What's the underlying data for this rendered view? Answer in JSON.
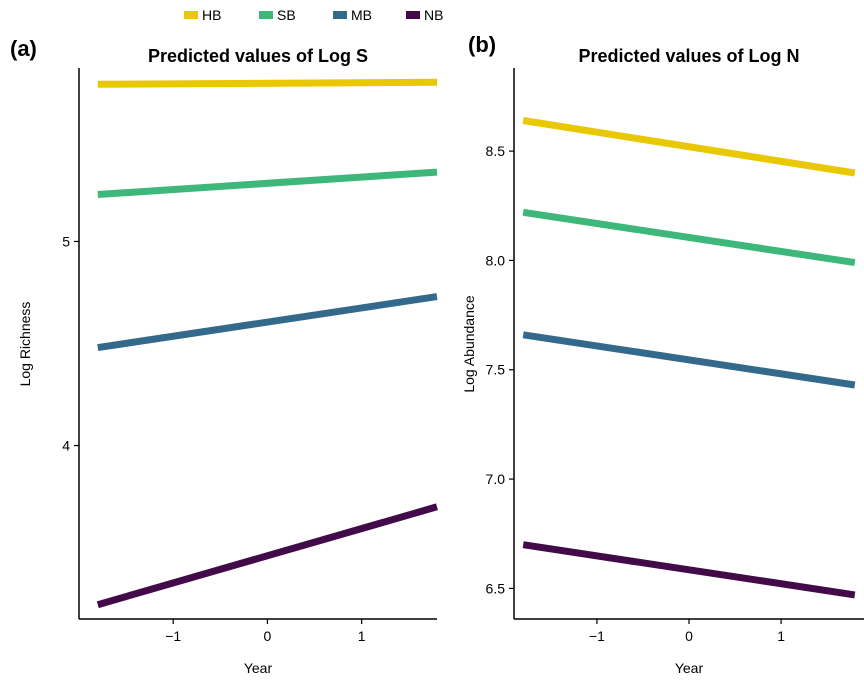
{
  "legend": {
    "entries": [
      {
        "label": "HB",
        "color": "#E8C800"
      },
      {
        "label": "SB",
        "color": "#3DB87A"
      },
      {
        "label": "MB",
        "color": "#336A8C"
      },
      {
        "label": "NB",
        "color": "#420A48"
      }
    ]
  },
  "chart_data": [
    {
      "type": "line",
      "panel_label": "(a)",
      "title": "Predicted values of Log S",
      "xlabel": "Year",
      "ylabel": "Log Richness",
      "xlim": [
        -2.0,
        1.8
      ],
      "ylim": [
        3.15,
        5.85
      ],
      "xticks": [
        -1,
        0,
        1
      ],
      "yticks": [
        4,
        5
      ],
      "grid": false,
      "series": [
        {
          "name": "HB",
          "color": "#E8C800",
          "x": [
            -1.8,
            1.8
          ],
          "y": [
            5.77,
            5.78
          ]
        },
        {
          "name": "SB",
          "color": "#3DB87A",
          "x": [
            -1.8,
            1.8
          ],
          "y": [
            5.23,
            5.34
          ]
        },
        {
          "name": "MB",
          "color": "#336A8C",
          "x": [
            -1.8,
            1.8
          ],
          "y": [
            4.48,
            4.73
          ]
        },
        {
          "name": "NB",
          "color": "#420A48",
          "x": [
            -1.8,
            1.8
          ],
          "y": [
            3.22,
            3.7
          ]
        }
      ]
    },
    {
      "type": "line",
      "panel_label": "(b)",
      "title": "Predicted values of Log N",
      "xlabel": "Year",
      "ylabel": "Log Abundance",
      "xlim": [
        -1.9,
        1.9
      ],
      "ylim": [
        6.36,
        8.88
      ],
      "xticks": [
        -1,
        0,
        1
      ],
      "yticks": [
        6.5,
        7.0,
        7.5,
        8.0,
        8.5
      ],
      "ytick_labels": [
        "6.5",
        "7.0",
        "7.5",
        "8.0",
        "8.5"
      ],
      "grid": false,
      "series": [
        {
          "name": "HB",
          "color": "#E8C800",
          "x": [
            -1.8,
            1.8
          ],
          "y": [
            8.64,
            8.4
          ]
        },
        {
          "name": "SB",
          "color": "#3DB87A",
          "x": [
            -1.8,
            1.8
          ],
          "y": [
            8.22,
            7.99
          ]
        },
        {
          "name": "MB",
          "color": "#336A8C",
          "x": [
            -1.8,
            1.8
          ],
          "y": [
            7.66,
            7.43
          ]
        },
        {
          "name": "NB",
          "color": "#420A48",
          "x": [
            -1.8,
            1.8
          ],
          "y": [
            6.7,
            6.47
          ]
        }
      ]
    }
  ]
}
